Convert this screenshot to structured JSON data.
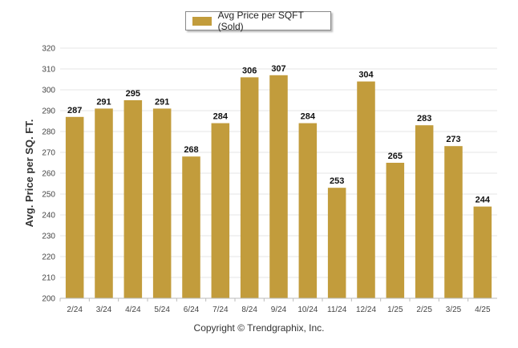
{
  "chart_data": {
    "type": "bar",
    "categories": [
      "2/24",
      "3/24",
      "4/24",
      "5/24",
      "6/24",
      "7/24",
      "8/24",
      "9/24",
      "10/24",
      "11/24",
      "12/24",
      "1/25",
      "2/25",
      "3/25",
      "4/25"
    ],
    "series": [
      {
        "name": "Avg Price per SQFT (Sold)",
        "values": [
          287,
          291,
          295,
          291,
          268,
          284,
          306,
          307,
          284,
          253,
          304,
          265,
          283,
          273,
          244
        ]
      }
    ],
    "ylabel": "Avg. Price per SQ. FT.",
    "xlabel": "",
    "ylim": [
      200,
      320
    ],
    "yticks": [
      200,
      210,
      220,
      230,
      240,
      250,
      260,
      270,
      280,
      290,
      300,
      310,
      320
    ],
    "grid": true,
    "legend": "top-center",
    "bar_color": "#c29c3c"
  },
  "footer": {
    "copyright": "Copyright © Trendgraphix, Inc."
  }
}
